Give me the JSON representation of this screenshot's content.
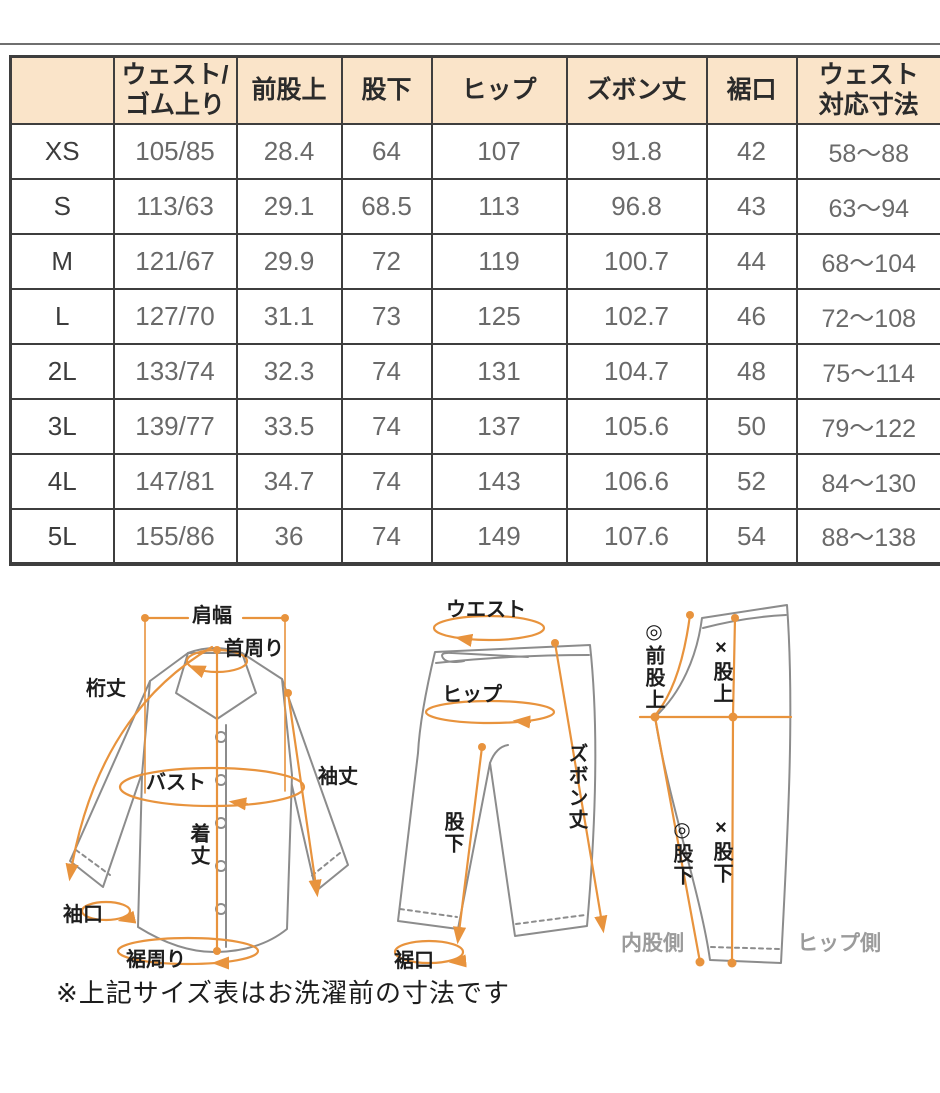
{
  "table": {
    "columns": [
      "",
      "ウェスト/ゴム上り",
      "前股上",
      "股下",
      "ヒップ",
      "ズボン丈",
      "裾口",
      "ウェスト対応寸法"
    ],
    "rows": [
      {
        "size": "XS",
        "cells": [
          "105/85",
          "28.4",
          "64",
          "107",
          "91.8",
          "42",
          "58～88"
        ]
      },
      {
        "size": "S",
        "cells": [
          "113/63",
          "29.1",
          "68.5",
          "113",
          "96.8",
          "43",
          "63～94"
        ]
      },
      {
        "size": "M",
        "cells": [
          "121/67",
          "29.9",
          "72",
          "119",
          "100.7",
          "44",
          "68～104"
        ]
      },
      {
        "size": "L",
        "cells": [
          "127/70",
          "31.1",
          "73",
          "125",
          "102.7",
          "46",
          "72～108"
        ]
      },
      {
        "size": "2L",
        "cells": [
          "133/74",
          "32.3",
          "74",
          "131",
          "104.7",
          "48",
          "75～114"
        ]
      },
      {
        "size": "3L",
        "cells": [
          "139/77",
          "33.5",
          "74",
          "137",
          "105.6",
          "50",
          "79～122"
        ]
      },
      {
        "size": "4L",
        "cells": [
          "147/81",
          "34.7",
          "74",
          "143",
          "106.6",
          "52",
          "84～130"
        ]
      },
      {
        "size": "5L",
        "cells": [
          "155/86",
          "36",
          "74",
          "149",
          "107.6",
          "54",
          "88～138"
        ]
      }
    ]
  },
  "diagrams": {
    "shirt": {
      "labels": {
        "shoulder_width": "肩幅",
        "neck": "首周り",
        "yuki_length": "桁丈",
        "bust": "バスト",
        "sleeve_length": "袖丈",
        "body_length": "着丈",
        "cuff": "袖口",
        "hem_around": "裾周り"
      }
    },
    "pants_front": {
      "labels": {
        "waist": "ウエスト",
        "hip": "ヒップ",
        "pants_length": "ズボン丈",
        "inseam": "股下",
        "hem": "裾口"
      }
    },
    "pants_side": {
      "labels": {
        "front_rise": "◎前股上",
        "rise": "×股上",
        "inseam_a": "◎股下",
        "inseam_b": "×股下",
        "inner_side": "内股側",
        "hip_side": "ヒップ側"
      }
    }
  },
  "note": "※上記サイズ表はお洗濯前の寸法です",
  "colors": {
    "header_bg": "#FAE4C9",
    "table_border": "#3E3E3E",
    "accent_orange": "#E8933D",
    "garment_outline": "#8C8C8C",
    "data_text": "#6A6A6A",
    "side_label_gray": "#9B9B9B"
  }
}
